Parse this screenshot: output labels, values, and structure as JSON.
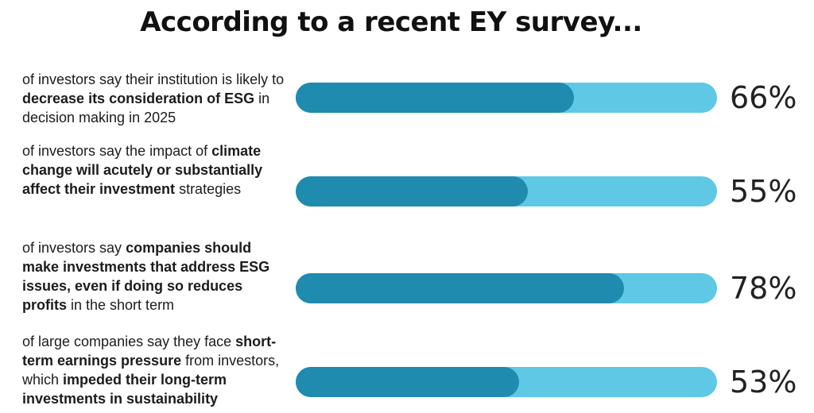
{
  "title": "According to a recent EY survey...",
  "colors": {
    "track": "#5ec8e5",
    "fill": "#1f8bae",
    "text": "#1c1c1c"
  },
  "chart_data": {
    "type": "bar",
    "orientation": "horizontal",
    "title": "According to a recent EY survey...",
    "unit": "%",
    "xlim": [
      0,
      100
    ],
    "categories": [
      "of investors say their institution is likely to decrease its consideration of ESG in decision making in 2025",
      "of investors say the impact of climate change will acutely or substantially affect their investment strategies",
      "of investors say companies should make investments that address ESG issues, even if doing so reduces profits in the short term",
      "of large companies say they face short-term earnings pressure from investors, which impeded their long-term investments in sustainability"
    ],
    "values": [
      66,
      55,
      78,
      53
    ],
    "value_labels": [
      "66%",
      "55%",
      "78%",
      "53%"
    ]
  },
  "rows": [
    {
      "segments": [
        {
          "text": "of investors say their institution is likely to ",
          "bold": false
        },
        {
          "text": "decrease its consideration of ESG",
          "bold": true
        },
        {
          "text": " in decision making in 2025",
          "bold": false
        }
      ]
    },
    {
      "segments": [
        {
          "text": "of investors say the impact of ",
          "bold": false
        },
        {
          "text": "climate change will acutely or substantially affect their investment",
          "bold": true
        },
        {
          "text": " strategies",
          "bold": false
        }
      ]
    },
    {
      "segments": [
        {
          "text": "of investors say ",
          "bold": false
        },
        {
          "text": "companies should make investments that address ESG issues, even if doing so reduces profits",
          "bold": true
        },
        {
          "text": " in the short term",
          "bold": false
        }
      ]
    },
    {
      "segments": [
        {
          "text": "of large companies say they face ",
          "bold": false
        },
        {
          "text": "short-term earnings pressure",
          "bold": true
        },
        {
          "text": " from investors, which ",
          "bold": false
        },
        {
          "text": "impeded their long-term investments in sustainability",
          "bold": true
        }
      ]
    }
  ]
}
